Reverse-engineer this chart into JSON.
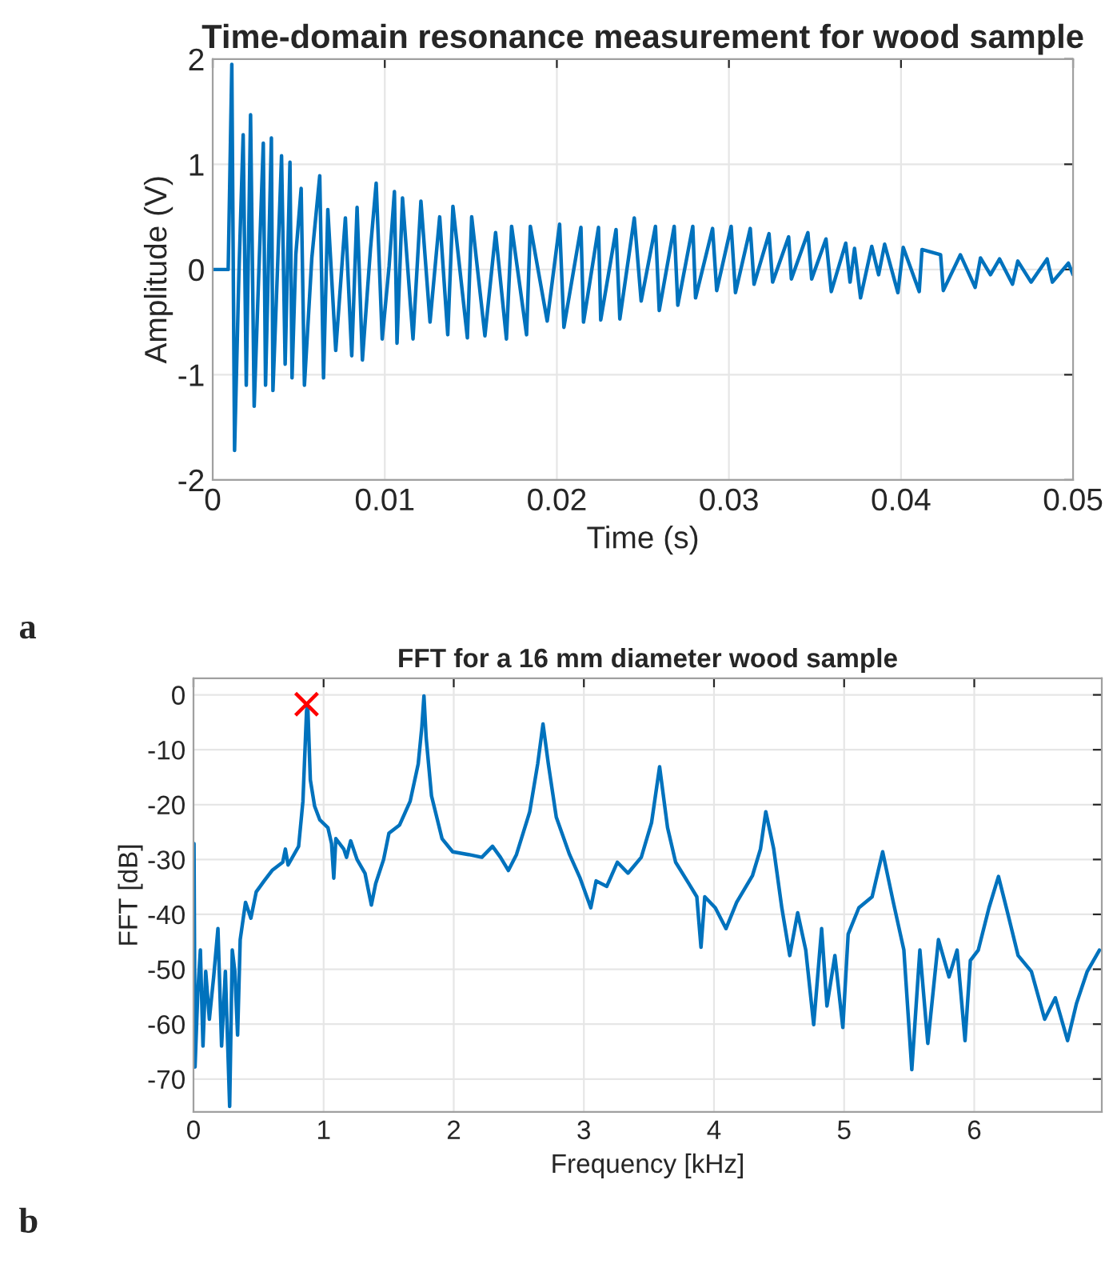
{
  "chart_data": [
    {
      "type": "line",
      "title": "Time-domain resonance measurement for wood sample",
      "xlabel": "Time (s)",
      "ylabel": "Amplitude (V)",
      "annotations": [
        "a"
      ],
      "xlim": [
        0,
        0.05
      ],
      "ylim": [
        -2,
        2
      ],
      "xticks": [
        0,
        0.01,
        0.02,
        0.03,
        0.04,
        0.05
      ],
      "yticks": [
        {
          "value": -2,
          "label": "-2"
        },
        {
          "value": -1,
          "label": "-1"
        },
        0,
        1,
        2
      ],
      "grid": true,
      "series": [
        {
          "color": "#0072bd",
          "marker": "none",
          "x": [
            0,
            0.0009,
            0.00111,
            0.00127,
            0.00152,
            0.00177,
            0.00195,
            0.0022,
            0.00241,
            0.00266,
            0.00294,
            0.00307,
            0.00341,
            0.0035,
            0.00375,
            0.004,
            0.00421,
            0.00449,
            0.00461,
            0.00483,
            0.00514,
            0.00533,
            0.00576,
            0.00622,
            0.00644,
            0.00669,
            0.00715,
            0.00771,
            0.00808,
            0.00839,
            0.0087,
            0.00917,
            0.0095,
            0.00985,
            0.01025,
            0.01056,
            0.01071,
            0.01103,
            0.01164,
            0.0121,
            0.01263,
            0.01319,
            0.01366,
            0.01396,
            0.0148,
            0.01505,
            0.01582,
            0.01644,
            0.01707,
            0.01737,
            0.01824,
            0.01846,
            0.01944,
            0.02016,
            0.02041,
            0.0214,
            0.02155,
            0.02242,
            0.02255,
            0.02344,
            0.02366,
            0.0245,
            0.0249,
            0.02573,
            0.02595,
            0.02682,
            0.02703,
            0.0279,
            0.02806,
            0.02905,
            0.02929,
            0.03013,
            0.03038,
            0.03124,
            0.03146,
            0.03233,
            0.03254,
            0.03347,
            0.03363,
            0.03459,
            0.03481,
            0.03564,
            0.03595,
            0.03679,
            0.03704,
            0.0373,
            0.03765,
            0.0383,
            0.0387,
            0.03905,
            0.03982,
            0.04013,
            0.04106,
            0.04122,
            0.0423,
            0.04246,
            0.04345,
            0.04431,
            0.04462,
            0.0452,
            0.04573,
            0.04648,
            0.04679,
            0.04756,
            0.04849,
            0.0488,
            0.04973,
            0.05
          ],
          "values": [
            0,
            0,
            1.95,
            -1.72,
            -0.05,
            1.28,
            -1.1,
            1.47,
            -1.3,
            -0.12,
            1.2,
            -1.1,
            1.25,
            -1.15,
            -0.06,
            1.08,
            -0.9,
            1.02,
            -1.03,
            0.14,
            0.77,
            -1.1,
            0.11,
            0.89,
            -1.03,
            0.57,
            -0.77,
            0.49,
            -0.82,
            0.59,
            -0.86,
            0.2,
            0.82,
            -0.66,
            0.03,
            0.74,
            -0.7,
            0.68,
            -0.66,
            0.65,
            -0.5,
            0.5,
            -0.62,
            0.6,
            -0.65,
            0.5,
            -0.63,
            0.35,
            -0.66,
            0.41,
            -0.62,
            0.41,
            -0.49,
            0.43,
            -0.55,
            0.4,
            -0.5,
            0.4,
            -0.48,
            0.38,
            -0.47,
            0.49,
            -0.3,
            0.41,
            -0.39,
            0.41,
            -0.34,
            0.41,
            -0.27,
            0.39,
            -0.2,
            0.41,
            -0.22,
            0.39,
            -0.14,
            0.34,
            -0.12,
            0.31,
            -0.09,
            0.35,
            -0.09,
            0.29,
            -0.21,
            0.25,
            -0.12,
            0.2,
            -0.27,
            0.22,
            -0.05,
            0.24,
            -0.22,
            0.21,
            -0.21,
            0.19,
            0.14,
            -0.2,
            0.14,
            -0.17,
            0.11,
            -0.05,
            0.1,
            -0.14,
            0.08,
            -0.12,
            0.1,
            -0.12,
            0.06,
            -0.05
          ]
        }
      ]
    },
    {
      "type": "line",
      "title": "FFT for a 16 mm diameter wood sample",
      "xlabel": "Frequency [kHz]",
      "ylabel": "FFT [dB]",
      "annotations": [
        "b"
      ],
      "xlim": [
        0,
        6.98
      ],
      "ylim": [
        -76,
        3
      ],
      "xticks": [
        0,
        1,
        2,
        3,
        4,
        5,
        6
      ],
      "yticks": [
        {
          "value": -70,
          "label": "-70"
        },
        {
          "value": -60,
          "label": "-60"
        },
        {
          "value": -50,
          "label": "-50"
        },
        {
          "value": -40,
          "label": "-40"
        },
        {
          "value": -30,
          "label": "-30"
        },
        {
          "value": -20,
          "label": "-20"
        },
        {
          "value": -10,
          "label": "-10"
        },
        0
      ],
      "grid": true,
      "series": [
        {
          "color": "#0072bd",
          "marker": "none",
          "x": [
            0.004,
            0.012,
            0.033,
            0.053,
            0.073,
            0.094,
            0.122,
            0.155,
            0.188,
            0.216,
            0.245,
            0.278,
            0.298,
            0.318,
            0.339,
            0.359,
            0.4,
            0.441,
            0.482,
            0.543,
            0.604,
            0.686,
            0.706,
            0.727,
            0.808,
            0.841,
            0.869,
            0.878,
            0.898,
            0.931,
            0.971,
            1.033,
            1.061,
            1.078,
            1.094,
            1.155,
            1.176,
            1.208,
            1.257,
            1.318,
            1.367,
            1.4,
            1.461,
            1.502,
            1.584,
            1.665,
            1.727,
            1.755,
            1.771,
            1.788,
            1.829,
            1.91,
            1.992,
            2.114,
            2.216,
            2.298,
            2.359,
            2.42,
            2.482,
            2.584,
            2.645,
            2.686,
            2.727,
            2.788,
            2.89,
            2.971,
            3.053,
            3.094,
            3.176,
            3.257,
            3.339,
            3.441,
            3.52,
            3.582,
            3.643,
            3.705,
            3.807,
            3.868,
            3.9,
            3.929,
            4.01,
            4.092,
            4.174,
            4.296,
            4.357,
            4.398,
            4.459,
            4.521,
            4.582,
            4.643,
            4.705,
            4.766,
            4.827,
            4.868,
            4.929,
            4.99,
            5.031,
            5.113,
            5.215,
            5.296,
            5.378,
            5.459,
            5.52,
            5.582,
            5.643,
            5.725,
            5.806,
            5.868,
            5.929,
            5.97,
            6.031,
            6.113,
            6.186,
            6.256,
            6.337,
            6.439,
            6.541,
            6.623,
            6.717,
            6.786,
            6.868,
            6.962
          ],
          "values": [
            -27.1,
            -67.8,
            -54.3,
            -46.5,
            -64,
            -50.4,
            -59.1,
            -51.4,
            -42.6,
            -64,
            -50.4,
            -75,
            -46.5,
            -50.4,
            -62,
            -44.6,
            -37.8,
            -40.7,
            -35.9,
            -33.9,
            -32,
            -30.5,
            -28.1,
            -31,
            -27.6,
            -19.4,
            -2.9,
            -1.9,
            -15.5,
            -20.3,
            -22.8,
            -24.2,
            -27.1,
            -33.4,
            -26.2,
            -28.1,
            -29.6,
            -26.6,
            -30,
            -32.5,
            -38.3,
            -34.4,
            -30,
            -25.2,
            -23.7,
            -19.4,
            -12.6,
            -5.8,
            -0.2,
            -7.8,
            -18.4,
            -26.2,
            -28.6,
            -29.1,
            -29.6,
            -27.6,
            -29.6,
            -32,
            -29.1,
            -21.3,
            -12.6,
            -5.3,
            -12.6,
            -22.3,
            -29.1,
            -33.4,
            -38.8,
            -33.9,
            -34.9,
            -30.5,
            -32.5,
            -29.6,
            -23.3,
            -13.1,
            -24.2,
            -30.5,
            -34.4,
            -36.8,
            -46,
            -36.8,
            -38.8,
            -42.6,
            -37.8,
            -32.9,
            -28.1,
            -21.3,
            -28.1,
            -38.8,
            -47.5,
            -39.7,
            -46.5,
            -60.1,
            -42.6,
            -56.7,
            -47.5,
            -60.6,
            -43.6,
            -38.8,
            -36.8,
            -28.6,
            -37.8,
            -46.5,
            -68.3,
            -46.5,
            -63.5,
            -44.6,
            -51.4,
            -46.5,
            -63,
            -48.4,
            -46.5,
            -38.8,
            -33.1,
            -39.7,
            -47.5,
            -50.4,
            -59.1,
            -55.2,
            -63,
            -56.2,
            -50.4,
            -46.5
          ]
        },
        {
          "type": "scatter",
          "color": "#ff0000",
          "marker": "cross",
          "x": [
            0.869
          ],
          "values": [
            -1.7
          ]
        }
      ]
    }
  ]
}
